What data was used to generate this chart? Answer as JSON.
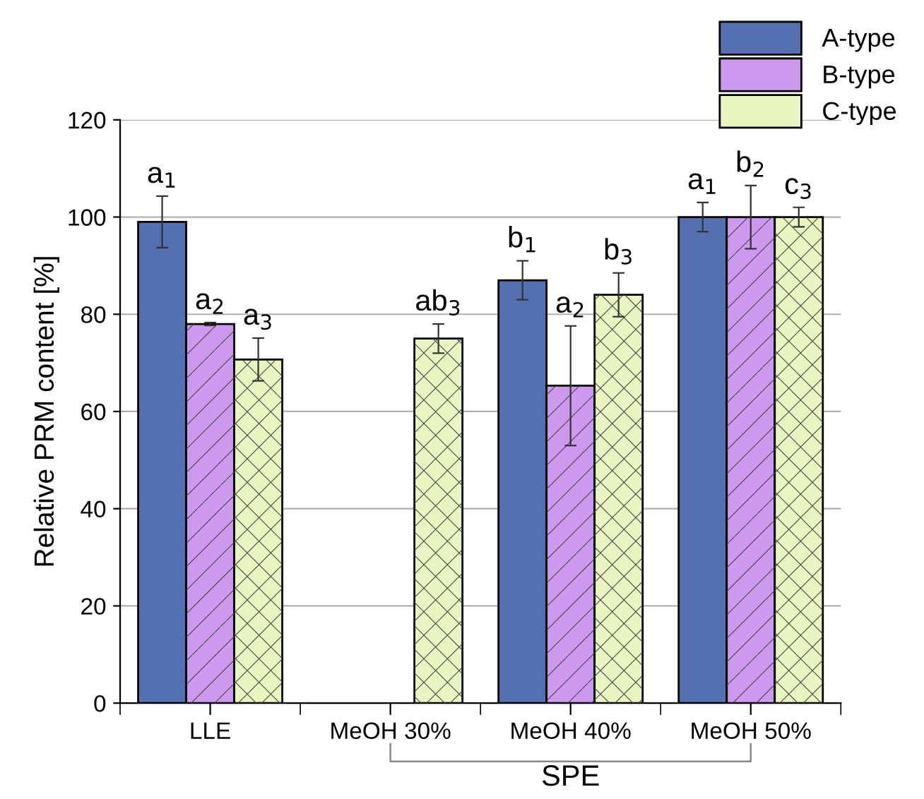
{
  "chart_data": {
    "type": "bar",
    "ylabel": "Relative PRM content [%]",
    "categories": [
      "LLE",
      "MeOH 30%",
      "MeOH 40%",
      "MeOH 50%"
    ],
    "series": [
      {
        "name": "A-type",
        "color": "#5470b0",
        "values": [
          99,
          null,
          87,
          100
        ],
        "errors": [
          5.3,
          null,
          4,
          3
        ]
      },
      {
        "name": "B-type",
        "color": "#cc99ee",
        "values": [
          78,
          null,
          65.3,
          100
        ],
        "errors": [
          0.3,
          null,
          12.3,
          6.5
        ]
      },
      {
        "name": "C-type",
        "color": "#e8f5c0",
        "values": [
          70.7,
          75,
          84,
          100
        ],
        "errors": [
          4.4,
          3,
          4.5,
          2
        ]
      }
    ],
    "ylim": [
      0,
      120
    ],
    "yticks": [
      0,
      20,
      40,
      60,
      80,
      100,
      120
    ],
    "grid": "y",
    "legend": "top right",
    "annotations": [
      "a$_{1}$",
      "a$_{2}$",
      "a$_{3}$",
      "ab$_{3}$",
      "b$_{1}$",
      "a$_{2}$",
      "b$_{3}$",
      "a$_{1}$",
      "b$_{2}$",
      "c$_{3}$",
      "SPE"
    ]
  }
}
